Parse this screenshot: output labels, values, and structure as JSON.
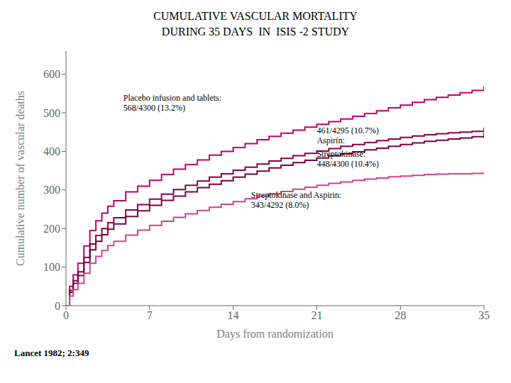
{
  "chart_data": {
    "type": "step",
    "title": "CUMULATIVE VASCULAR MORTALITY",
    "subtitle": "DURING 35 DAYS  IN  ISIS -2 STUDY",
    "x_label": "Days from randomization",
    "y_label": "Cumulative number of vascular deaths",
    "x": [
      0,
      0.3,
      0.6,
      1,
      1.5,
      2,
      2.5,
      3,
      3.5,
      4,
      5,
      6,
      7,
      8,
      9,
      10,
      11,
      12,
      13,
      14,
      15,
      16,
      17,
      18,
      19,
      20,
      21,
      22,
      23,
      24,
      25,
      26,
      27,
      28,
      29,
      30,
      31,
      32,
      33,
      34,
      35
    ],
    "series": [
      {
        "color": "#c0006a",
        "values": [
          0,
          50,
          80,
          110,
          155,
          195,
          220,
          240,
          258,
          272,
          295,
          310,
          325,
          340,
          354,
          366,
          378,
          390,
          400,
          410,
          420,
          430,
          439,
          447,
          455,
          463,
          470,
          477,
          484,
          491,
          498,
          505,
          513,
          520,
          527,
          534,
          540,
          546,
          552,
          558,
          568
        ]
      },
      {
        "color": "#8b0045",
        "values": [
          0,
          40,
          65,
          88,
          125,
          160,
          182,
          200,
          215,
          228,
          248,
          262,
          276,
          289,
          301,
          312,
          323,
          333,
          342,
          351,
          359,
          367,
          375,
          382,
          389,
          395,
          401,
          407,
          413,
          418,
          423,
          428,
          432,
          436,
          440,
          443,
          446,
          448,
          450,
          452,
          461
        ]
      },
      {
        "color": "#7a0040",
        "values": [
          0,
          35,
          58,
          78,
          112,
          145,
          167,
          184,
          198,
          212,
          231,
          246,
          260,
          273,
          284,
          295,
          306,
          315,
          324,
          333,
          341,
          349,
          357,
          364,
          371,
          377,
          383,
          389,
          394,
          399,
          404,
          408,
          413,
          418,
          422,
          426,
          429,
          432,
          435,
          438,
          448
        ]
      },
      {
        "color": "#d4408a",
        "values": [
          0,
          25,
          42,
          58,
          84,
          110,
          128,
          143,
          156,
          167,
          183,
          196,
          208,
          219,
          229,
          238,
          247,
          255,
          263,
          270,
          277,
          284,
          290,
          296,
          302,
          307,
          312,
          317,
          321,
          325,
          328,
          331,
          334,
          336,
          338,
          340,
          341,
          342,
          342,
          343,
          343
        ]
      }
    ],
    "xlim": [
      0,
      35
    ],
    "xticks": [
      0,
      7,
      14,
      21,
      28,
      35
    ],
    "ylim": [
      0,
      660
    ],
    "yticks": [
      0,
      100,
      200,
      300,
      400,
      500,
      600
    ],
    "grid": false,
    "annotations": [
      {
        "text": "Placebo infusion and tablets:\n568/4300 (13.2%)",
        "x": 4.8,
        "y": 500
      },
      {
        "text": "461/4295 (10.7%)\nAspirin:",
        "x": 21.0,
        "y": 415
      },
      {
        "text": "Streptokinase:\n448/4300 (10.4%)",
        "x": 21.0,
        "y": 355
      },
      {
        "text": "Streptokinase and Aspirin:\n343/4292 (8.0%)",
        "x": 15.5,
        "y": 248
      },
      {
        "text": "Lancet 1982; 2:349"
      }
    ]
  }
}
